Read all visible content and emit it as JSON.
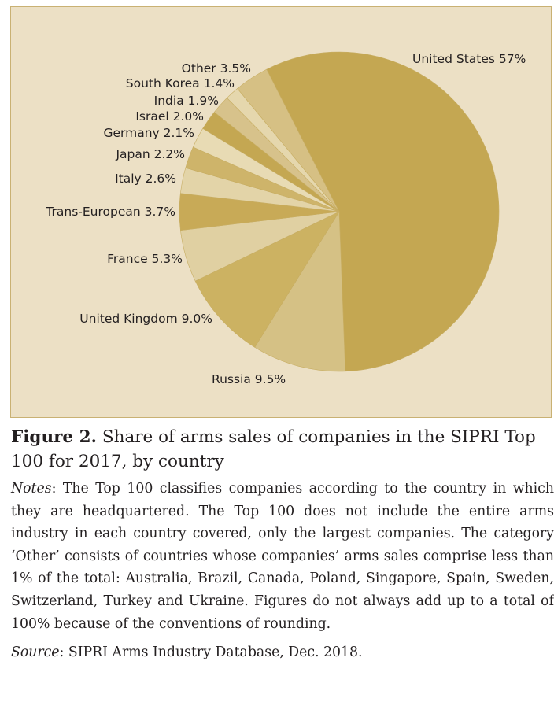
{
  "chart_data": {
    "type": "pie",
    "slices": [
      {
        "label": "United States",
        "value": 57,
        "label_text": "United States 57%",
        "color": "#c4a752"
      },
      {
        "label": "Russia",
        "value": 9.5,
        "label_text": "Russia 9.5%",
        "color": "#d5c185"
      },
      {
        "label": "United Kingdom",
        "value": 9.0,
        "label_text": "United Kingdom 9.0%",
        "color": "#ccb262"
      },
      {
        "label": "France",
        "value": 5.3,
        "label_text": "France 5.3%",
        "color": "#e0d0a2"
      },
      {
        "label": "Trans-European",
        "value": 3.7,
        "label_text": "Trans-European 3.7%",
        "color": "#c8aa57"
      },
      {
        "label": "Italy",
        "value": 2.6,
        "label_text": "Italy 2.6%",
        "color": "#e3d4a8"
      },
      {
        "label": "Japan",
        "value": 2.2,
        "label_text": "Japan 2.2%",
        "color": "#ceb46a"
      },
      {
        "label": "Germany",
        "value": 2.1,
        "label_text": "Germany 2.1%",
        "color": "#e8dbb4"
      },
      {
        "label": "Israel",
        "value": 2.0,
        "label_text": "Israel 2.0%",
        "color": "#c4a752"
      },
      {
        "label": "India",
        "value": 1.9,
        "label_text": "India 1.9%",
        "color": "#d7c28b"
      },
      {
        "label": "South Korea",
        "value": 1.4,
        "label_text": "South Korea 1.4%",
        "color": "#e5d7ad"
      },
      {
        "label": "Other",
        "value": 3.5,
        "label_text": "Other 3.5%",
        "color": "#d6c084"
      }
    ],
    "background": "#ece0c5",
    "legend": "none"
  },
  "caption": {
    "figure_label": "Figure 2.",
    "title": "Share of arms sales of companies in the SIPRI Top 100 for 2017, by country",
    "notes_label": "Notes",
    "notes": ": The Top 100 classifies companies according to the country in which they are headquartered. The Top 100 does not include the entire arms industry in each country covered, only the largest companies. The category ‘Other’ consists of countries whose companies’ arms sales comprise less than 1% of the total: Australia, Brazil, Canada, Poland, Singapore, Spain, Sweden, Switzerland, Turkey and Ukraine. Figures do not always add up to a total of 100% because of the conventions of rounding.",
    "source_label": "Source",
    "source": ": SIPRI Arms Industry Database, Dec. 2018."
  }
}
